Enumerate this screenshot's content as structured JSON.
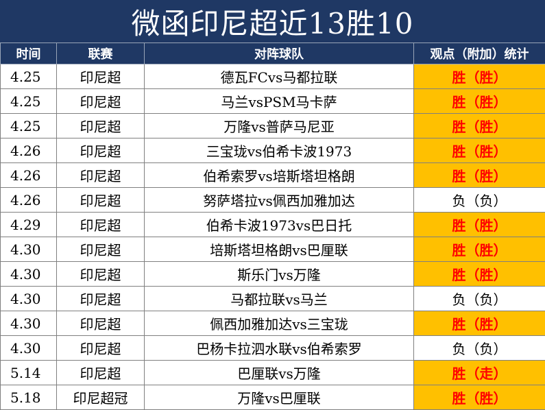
{
  "title": "微函印尼超近13胜10",
  "headers": {
    "time": "时间",
    "league": "联赛",
    "match": "对阵球队",
    "result": "观点（附加）统计"
  },
  "colors": {
    "header_bg": "#1f3864",
    "win_bg": "#ffc000",
    "win_text": "#ff0000"
  },
  "rows": [
    {
      "time": "4.25",
      "league": "印尼超",
      "match": "德瓦FCvs马都拉联",
      "result": "胜（胜）",
      "outcome": "win"
    },
    {
      "time": "4.25",
      "league": "印尼超",
      "match": "马兰vsPSM马卡萨",
      "result": "胜（胜）",
      "outcome": "win"
    },
    {
      "time": "4.25",
      "league": "印尼超",
      "match": "万隆vs普萨马尼亚",
      "result": "胜（胜）",
      "outcome": "win"
    },
    {
      "time": "4.26",
      "league": "印尼超",
      "match": "三宝珑vs伯希卡波1973",
      "result": "胜（胜）",
      "outcome": "win"
    },
    {
      "time": "4.26",
      "league": "印尼超",
      "match": "伯希索罗vs培斯塔坦格朗",
      "result": "胜（胜）",
      "outcome": "win"
    },
    {
      "time": "4.26",
      "league": "印尼超",
      "match": "努萨塔拉vs佩西加雅加达",
      "result": "负（负）",
      "outcome": "loss"
    },
    {
      "time": "4.29",
      "league": "印尼超",
      "match": "伯希卡波1973vs巴日托",
      "result": "胜（胜）",
      "outcome": "win"
    },
    {
      "time": "4.30",
      "league": "印尼超",
      "match": "培斯塔坦格朗vs巴厘联",
      "result": "胜（胜）",
      "outcome": "win"
    },
    {
      "time": "4.30",
      "league": "印尼超",
      "match": "斯乐门vs万隆",
      "result": "胜（胜）",
      "outcome": "win"
    },
    {
      "time": "4.30",
      "league": "印尼超",
      "match": "马都拉联vs马兰",
      "result": "负（负）",
      "outcome": "loss"
    },
    {
      "time": "4.30",
      "league": "印尼超",
      "match": "佩西加雅加达vs三宝珑",
      "result": "胜（胜）",
      "outcome": "win"
    },
    {
      "time": "4.30",
      "league": "印尼超",
      "match": "巴杨卡拉泗水联vs伯希索罗",
      "result": "负（负）",
      "outcome": "loss"
    },
    {
      "time": "5.14",
      "league": "印尼超",
      "match": "巴厘联vs万隆",
      "result": "胜（走）",
      "outcome": "win"
    },
    {
      "time": "5.18",
      "league": "印尼超冠",
      "match": "万隆vs巴厘联",
      "result": "胜（胜）",
      "outcome": "win"
    }
  ]
}
